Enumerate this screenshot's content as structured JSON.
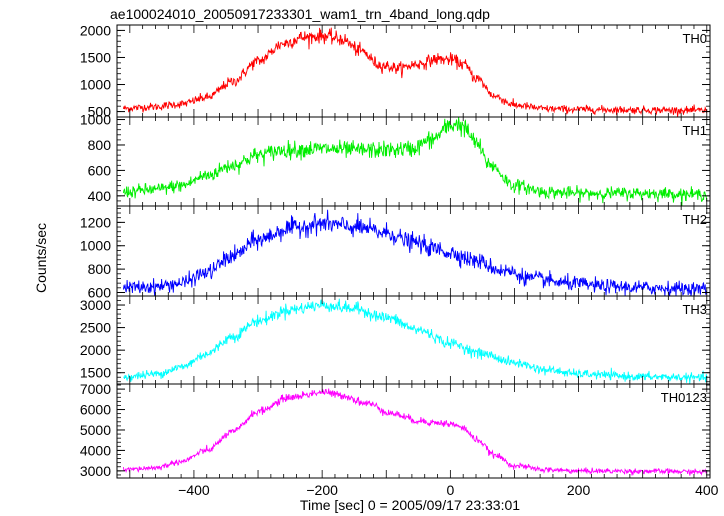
{
  "chart_data": {
    "type": "line",
    "title": "ae100024010_20050917233301_wam1_trn_4band_long.qdp",
    "xlabel": "Time [sec] 0 = 2005/09/17 23:33:01",
    "ylabel": "Counts/sec",
    "xlim": [
      -520,
      405
    ],
    "x_ticks": [
      -400,
      -200,
      0,
      200,
      400
    ],
    "x_tick_labels": [
      "−400",
      "−200",
      "0",
      "200",
      "400"
    ],
    "grid": false,
    "panels": [
      {
        "name": "TH0",
        "color": "#ff0000",
        "ylim": [
          400,
          2100
        ],
        "yticks": [
          500,
          1000,
          1500,
          2000
        ],
        "noise": 65,
        "x": [
          -510,
          -460,
          -420,
          -380,
          -340,
          -300,
          -260,
          -230,
          -200,
          -170,
          -140,
          -110,
          -80,
          -50,
          -20,
          0,
          20,
          40,
          70,
          100,
          150,
          200,
          300,
          400
        ],
        "y": [
          560,
          590,
          640,
          760,
          1050,
          1430,
          1760,
          1870,
          1900,
          1840,
          1620,
          1360,
          1300,
          1380,
          1470,
          1460,
          1380,
          1120,
          780,
          620,
          550,
          540,
          530,
          520
        ]
      },
      {
        "name": "TH1",
        "color": "#00ee00",
        "ylim": [
          320,
          1020
        ],
        "yticks": [
          400,
          600,
          800,
          1000
        ],
        "noise": 45,
        "x": [
          -510,
          -460,
          -420,
          -380,
          -340,
          -300,
          -260,
          -200,
          -150,
          -100,
          -60,
          -30,
          0,
          10,
          20,
          40,
          60,
          100,
          150,
          200,
          300,
          400
        ],
        "y": [
          430,
          450,
          480,
          560,
          640,
          720,
          760,
          770,
          760,
          760,
          770,
          840,
          950,
          970,
          940,
          820,
          650,
          480,
          430,
          420,
          420,
          410
        ]
      },
      {
        "name": "TH2",
        "color": "#0000ff",
        "ylim": [
          570,
          1340
        ],
        "yticks": [
          600,
          800,
          1000,
          1200
        ],
        "noise": 55,
        "x": [
          -510,
          -460,
          -420,
          -380,
          -340,
          -300,
          -250,
          -200,
          -150,
          -100,
          -60,
          -20,
          0,
          40,
          80,
          130,
          180,
          250,
          300,
          400
        ],
        "y": [
          640,
          650,
          680,
          770,
          910,
          1050,
          1150,
          1190,
          1160,
          1110,
          1030,
          970,
          940,
          870,
          790,
          720,
          680,
          650,
          640,
          630
        ]
      },
      {
        "name": "TH3",
        "color": "#00ffff",
        "ylim": [
          1250,
          3200
        ],
        "yticks": [
          1500,
          2000,
          2500,
          3000
        ],
        "noise": 85,
        "x": [
          -510,
          -460,
          -420,
          -380,
          -340,
          -300,
          -250,
          -200,
          -150,
          -100,
          -50,
          0,
          50,
          100,
          150,
          200,
          300,
          400
        ],
        "y": [
          1400,
          1470,
          1620,
          1920,
          2300,
          2650,
          2900,
          3000,
          2920,
          2720,
          2450,
          2150,
          1920,
          1720,
          1560,
          1470,
          1410,
          1390
        ]
      },
      {
        "name": "TH0123",
        "color": "#ff00ff",
        "ylim": [
          2650,
          7250
        ],
        "yticks": [
          3000,
          4000,
          5000,
          6000,
          7000
        ],
        "noise": 120,
        "x": [
          -510,
          -460,
          -420,
          -380,
          -340,
          -300,
          -250,
          -200,
          -170,
          -130,
          -90,
          -50,
          -20,
          0,
          20,
          40,
          70,
          100,
          150,
          200,
          300,
          400
        ],
        "y": [
          3050,
          3150,
          3450,
          4000,
          4900,
          5900,
          6600,
          6850,
          6700,
          6300,
          5800,
          5450,
          5350,
          5300,
          5100,
          4550,
          3750,
          3250,
          3050,
          3000,
          2980,
          2950
        ]
      }
    ]
  }
}
